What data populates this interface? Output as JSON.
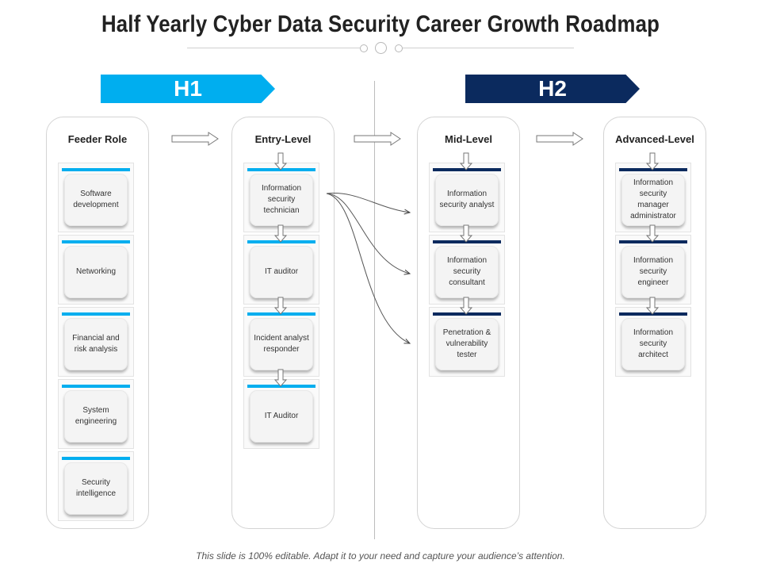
{
  "title": "Half Yearly Cyber Data Security Career Growth Roadmap",
  "phases": [
    {
      "label": "H1",
      "color": "#00aeef"
    },
    {
      "label": "H2",
      "color": "#0b2a5e"
    }
  ],
  "columns": [
    {
      "heading": "Feeder Role",
      "bar_color": "#00aeef",
      "cards": [
        "Software development",
        "Networking",
        "Financial and risk analysis",
        "System engineering",
        "Security intelligence"
      ]
    },
    {
      "heading": "Entry-Level",
      "bar_color": "#00aeef",
      "cards": [
        "Information security technician",
        "IT auditor",
        "Incident analyst responder",
        "IT Auditor"
      ]
    },
    {
      "heading": "Mid-Level",
      "bar_color": "#0b2a5e",
      "cards": [
        "Information security analyst",
        "Information security consultant",
        "Penetration & vulnerability tester"
      ]
    },
    {
      "heading": "Advanced-Level",
      "bar_color": "#0b2a5e",
      "cards": [
        "Information security manager administrator",
        "Information security engineer",
        "Information security architect"
      ]
    }
  ],
  "footer": "This slide is 100% editable. Adapt it to your need and capture your audience’s attention."
}
